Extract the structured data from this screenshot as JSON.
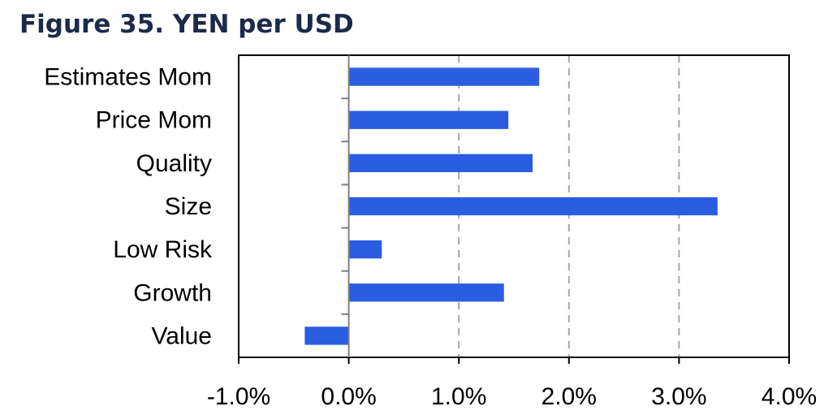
{
  "chart_data": {
    "type": "bar",
    "orientation": "horizontal",
    "title": "Figure 35. YEN per USD",
    "categories": [
      "Estimates Mom",
      "Price Mom",
      "Quality",
      "Size",
      "Low Risk",
      "Growth",
      "Value"
    ],
    "values": [
      1.73,
      1.45,
      1.67,
      3.35,
      0.3,
      1.41,
      -0.4
    ],
    "xlim": [
      -1.0,
      4.0
    ],
    "xticks": [
      -1.0,
      0.0,
      1.0,
      2.0,
      3.0,
      4.0
    ],
    "xtick_labels": [
      "-1.0%",
      "0.0%",
      "1.0%",
      "2.0%",
      "3.0%",
      "4.0%"
    ],
    "unit": "%",
    "grid": "vertical-dashed",
    "bar_color": "#2a5de0",
    "title_color": "#1c2a4a",
    "grid_color": "#a6a6a6",
    "axis_color": "#000000"
  }
}
